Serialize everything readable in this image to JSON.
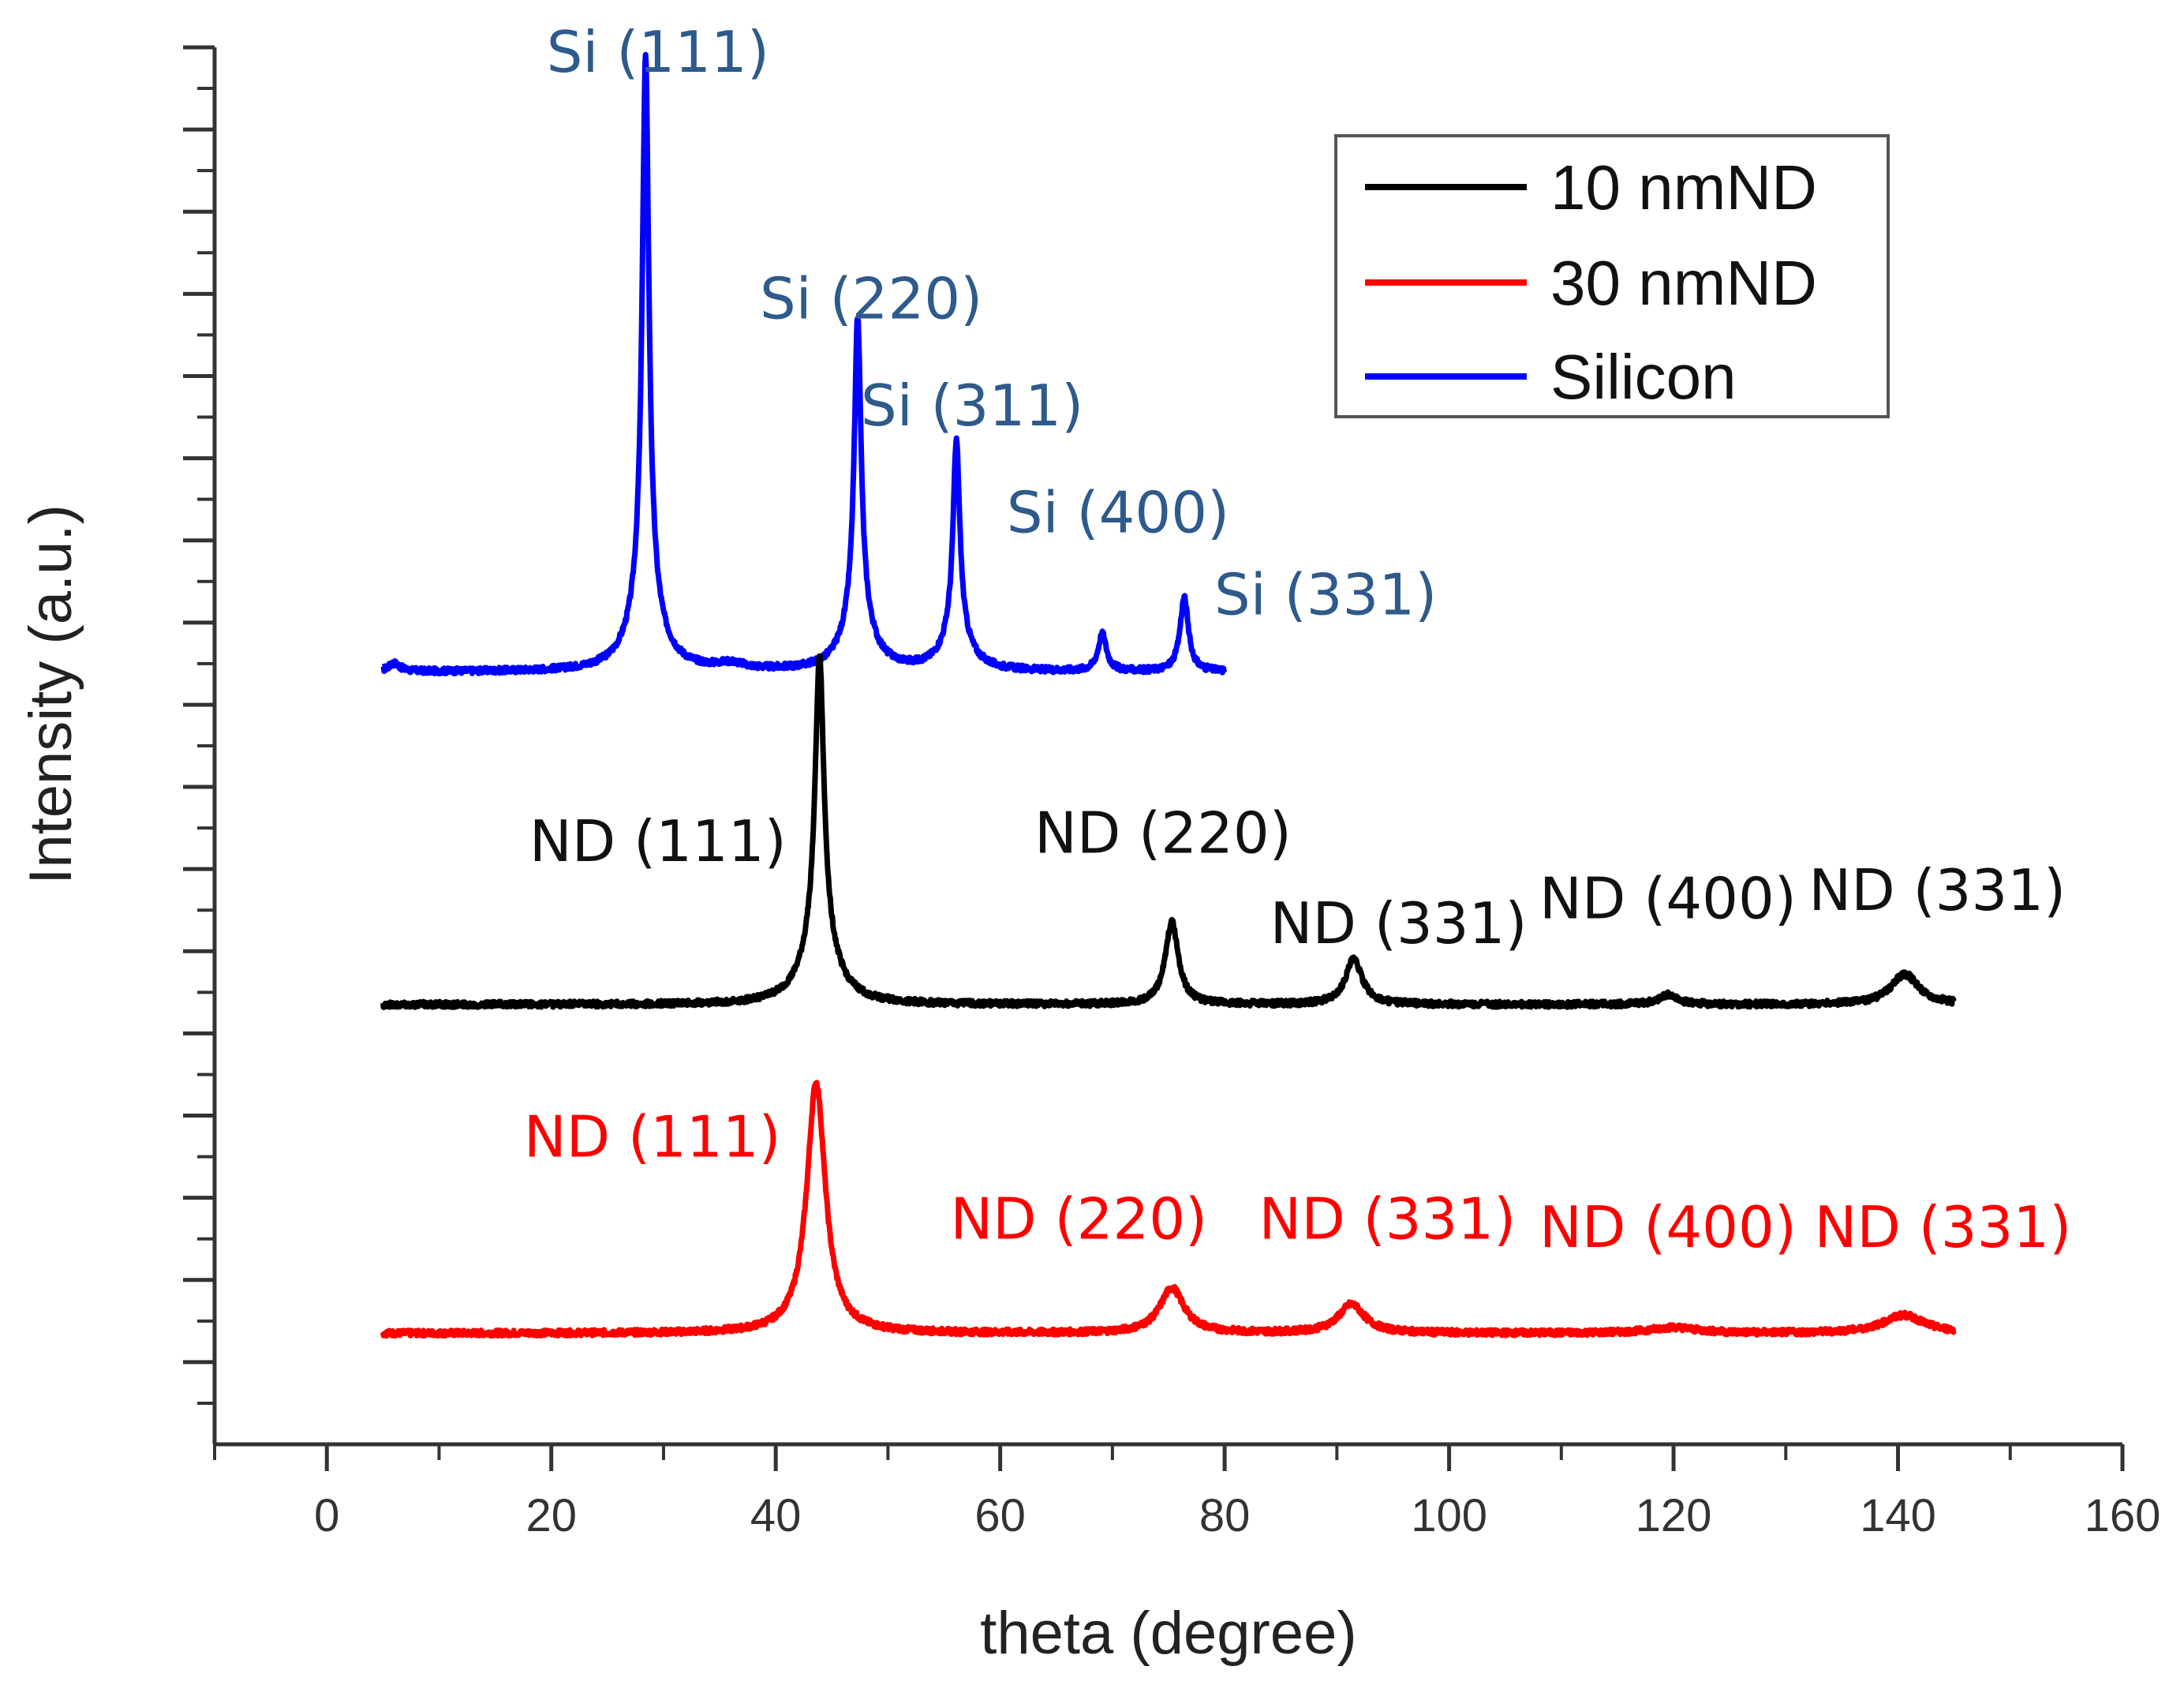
{
  "chart_data": {
    "type": "line",
    "title": "",
    "xlabel": "theta (degree)",
    "ylabel": "Intensity (a.u.)",
    "xlim": [
      -10,
      160
    ],
    "ylim": [
      0,
      17
    ],
    "x_ticks": [
      0,
      20,
      40,
      60,
      80,
      100,
      120,
      140,
      160
    ],
    "x_tick_labels": [
      "0",
      "20",
      "40",
      "60",
      "80",
      "100",
      "120",
      "140",
      "160"
    ],
    "legend": {
      "position": "top-right",
      "entries": [
        {
          "label": "10 nmND",
          "color": "#000000"
        },
        {
          "label": "30 nmND",
          "color": "#ff0000"
        },
        {
          "label": "Silicon",
          "color": "#0000ff"
        }
      ]
    },
    "series": [
      {
        "name": "Silicon",
        "color": "#0000ff",
        "x_range": [
          5,
          80
        ],
        "baseline": 9.4,
        "peaks": [
          {
            "x": 6,
            "height": 0.1,
            "width": 0.6
          },
          {
            "x": 28.4,
            "height": 6.5,
            "width": 0.35
          },
          {
            "x": 28.4,
            "height": 1.0,
            "width": 1.4
          },
          {
            "x": 36,
            "height": 0.07,
            "width": 1.5
          },
          {
            "x": 47.3,
            "height": 3.5,
            "width": 0.35
          },
          {
            "x": 47.3,
            "height": 0.8,
            "width": 1.3
          },
          {
            "x": 56.1,
            "height": 2.3,
            "width": 0.35
          },
          {
            "x": 56.1,
            "height": 0.5,
            "width": 1.3
          },
          {
            "x": 69.1,
            "height": 0.45,
            "width": 0.45
          },
          {
            "x": 76.4,
            "height": 0.9,
            "width": 0.45
          }
        ],
        "annotations": [
          {
            "text": "Si (111)",
            "x": 29.5,
            "y": 16.7
          },
          {
            "text": "Si (220)",
            "x": 48.5,
            "y": 13.7
          },
          {
            "text": "Si (311)",
            "x": 57.5,
            "y": 12.4
          },
          {
            "text": "Si (400)",
            "x": 70.5,
            "y": 11.1
          },
          {
            "text": "Si (331)",
            "x": 89,
            "y": 10.1
          }
        ],
        "annotation_color": "#2e5a8c"
      },
      {
        "name": "10 nmND",
        "color": "#000000",
        "x_range": [
          5,
          145
        ],
        "baseline": 5.35,
        "peaks": [
          {
            "x": 43.9,
            "height": 3.3,
            "width": 0.45
          },
          {
            "x": 43.9,
            "height": 0.95,
            "width": 1.5
          },
          {
            "x": 75.3,
            "height": 1.0,
            "width": 0.7
          },
          {
            "x": 91.5,
            "height": 0.55,
            "width": 0.9
          },
          {
            "x": 119.5,
            "height": 0.12,
            "width": 1.0
          },
          {
            "x": 140.6,
            "height": 0.37,
            "width": 1.5
          }
        ],
        "annotations": [
          {
            "text": "ND (111)",
            "x": 29.5,
            "y": 7.1
          },
          {
            "text": "ND (220)",
            "x": 74.5,
            "y": 7.2
          },
          {
            "text": "ND (331)",
            "x": 95.5,
            "y": 6.1
          },
          {
            "text": "ND (400)",
            "x": 119.5,
            "y": 6.4
          },
          {
            "text": "ND (331)",
            "x": 143.5,
            "y": 6.5
          }
        ],
        "annotation_color": "#111111"
      },
      {
        "name": "30 nmND",
        "color": "#ff0000",
        "x_range": [
          5,
          145
        ],
        "baseline": 1.35,
        "peaks": [
          {
            "x": 43.6,
            "height": 3.05,
            "width": 1.0
          },
          {
            "x": 75.3,
            "height": 0.55,
            "width": 1.3
          },
          {
            "x": 91.3,
            "height": 0.35,
            "width": 1.4
          },
          {
            "x": 120,
            "height": 0.07,
            "width": 2.5
          },
          {
            "x": 140.5,
            "height": 0.22,
            "width": 2.2
          }
        ],
        "annotations": [
          {
            "text": "ND (111)",
            "x": 29,
            "y": 3.5
          },
          {
            "text": "ND (220)",
            "x": 67,
            "y": 2.5
          },
          {
            "text": "ND (331)",
            "x": 94.5,
            "y": 2.5
          },
          {
            "text": "ND (400)",
            "x": 119.5,
            "y": 2.4
          },
          {
            "text": "ND (331)",
            "x": 144,
            "y": 2.4
          }
        ],
        "annotation_color": "#ff0000"
      }
    ]
  }
}
